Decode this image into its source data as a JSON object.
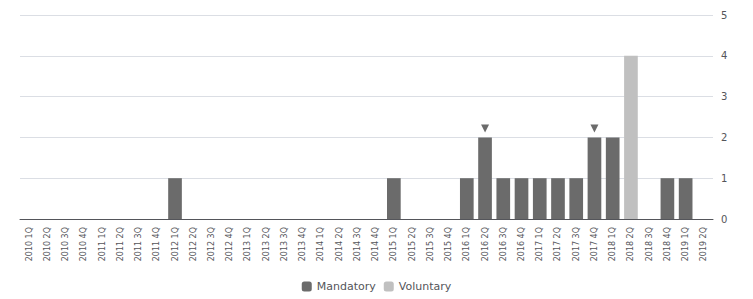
{
  "chart_data": {
    "type": "bar",
    "categories": [
      "2010 1Q",
      "2010 2Q",
      "2010 3Q",
      "2010 4Q",
      "2011 1Q",
      "2011 2Q",
      "2011 3Q",
      "2011 4Q",
      "2012 1Q",
      "2012 2Q",
      "2012 3Q",
      "2012 4Q",
      "2013 1Q",
      "2013 2Q",
      "2013 3Q",
      "2013 4Q",
      "2014 1Q",
      "2014 2Q",
      "2014 3Q",
      "2014 4Q",
      "2015 1Q",
      "2015 2Q",
      "2015 3Q",
      "2015 4Q",
      "2016 1Q",
      "2016 2Q",
      "2016 3Q",
      "2016 4Q",
      "2017 1Q",
      "2017 2Q",
      "2017 3Q",
      "2017 4Q",
      "2018 1Q",
      "2018 2Q",
      "2018 3Q",
      "2018 4Q",
      "2019 1Q",
      "2019 2Q"
    ],
    "series": [
      {
        "name": "Mandatory",
        "color": "#6b6b6b",
        "values": [
          0,
          0,
          0,
          0,
          0,
          0,
          0,
          0,
          1,
          0,
          0,
          0,
          0,
          0,
          0,
          0,
          0,
          0,
          0,
          0,
          1,
          0,
          0,
          0,
          1,
          2,
          1,
          1,
          1,
          1,
          1,
          2,
          2,
          0,
          0,
          1,
          1,
          0
        ],
        "markers": [
          "2016 2Q",
          "2017 4Q"
        ]
      },
      {
        "name": "Voluntary",
        "color": "#c0c0c0",
        "values": [
          0,
          0,
          0,
          0,
          0,
          0,
          0,
          0,
          0,
          0,
          0,
          0,
          0,
          0,
          0,
          0,
          0,
          0,
          0,
          0,
          0,
          0,
          0,
          0,
          0,
          0,
          0,
          0,
          0,
          0,
          0,
          0,
          0,
          4,
          0,
          0,
          0,
          0
        ]
      }
    ],
    "ylim": [
      0,
      5
    ],
    "yticks": [
      0,
      1,
      2,
      3,
      4,
      5
    ],
    "grid": true,
    "legend": "bottom"
  }
}
